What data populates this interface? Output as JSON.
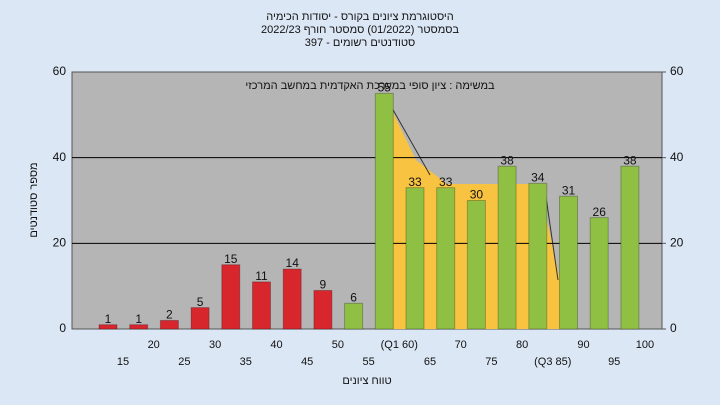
{
  "chart_data": {
    "type": "bar",
    "title_lines": [
      "היסטוגרמת ציונים בקורס - יסודות הכימיה",
      "בסמסטר (01/2022)  סמסטר חורף 2022/23",
      "סטודנטים רשומים - 397"
    ],
    "annotation": "במשימה : ציון סופי במערכת האקדמית במחשב המרכזי",
    "ylabel": "מספר סטודנטים",
    "xlabel": "טווח ציונים",
    "categories": [
      "15",
      "20",
      "25",
      "30",
      "35",
      "40",
      "45",
      "50",
      "55",
      "(Q1 60)",
      "65",
      "70",
      "75",
      "80",
      "(Q3 85)",
      "90",
      "95",
      "100"
    ],
    "values": [
      1,
      1,
      2,
      5,
      15,
      11,
      14,
      9,
      6,
      55,
      33,
      33,
      30,
      38,
      34,
      31,
      26,
      38
    ],
    "colors": [
      "#d8262d",
      "#d8262d",
      "#d8262d",
      "#d8262d",
      "#d8262d",
      "#d8262d",
      "#d8262d",
      "#d8262d",
      "#8fc043",
      "#8fc043",
      "#8fc043",
      "#8fc043",
      "#8fc043",
      "#8fc043",
      "#8fc043",
      "#8fc043",
      "#8fc043",
      "#8fc043"
    ],
    "ylim": [
      0,
      60
    ],
    "yticks": [
      0,
      20,
      40,
      60
    ],
    "y2lim": [
      0,
      60
    ],
    "y2ticks": [
      0,
      20,
      40,
      60
    ],
    "grid": true
  }
}
